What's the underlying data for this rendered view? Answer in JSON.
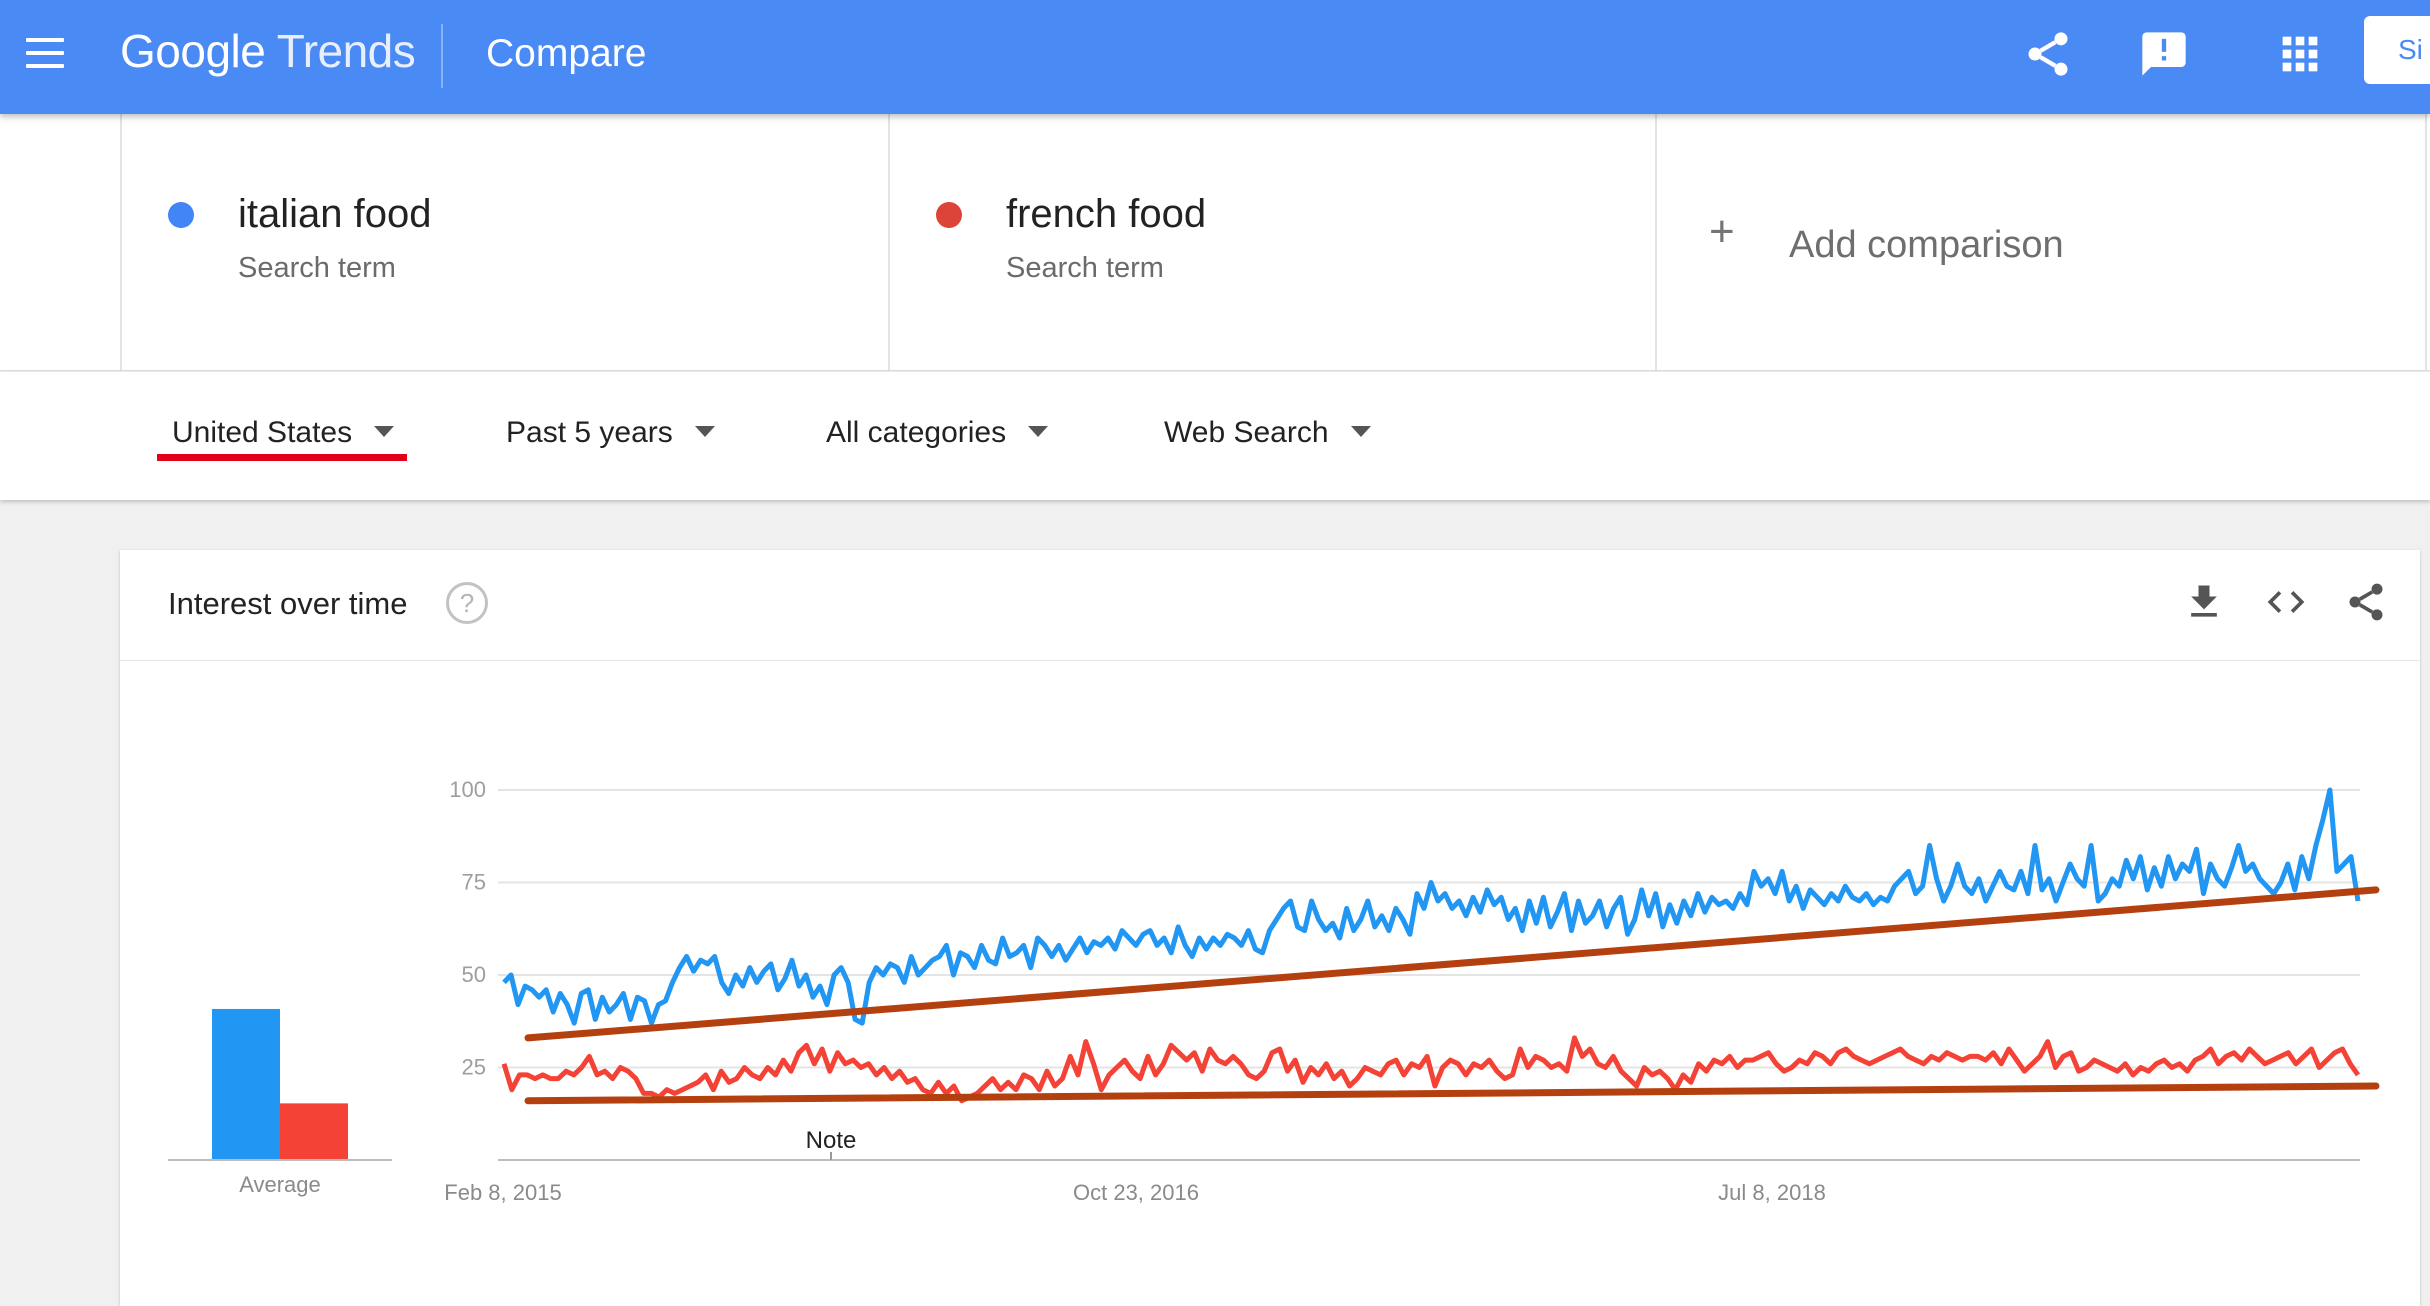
{
  "header": {
    "menu_icon": "menu-icon",
    "brand_google": "Google",
    "brand_trends": "Trends",
    "page_title": "Compare",
    "share_icon": "share-icon",
    "feedback_icon": "feedback-icon",
    "apps_icon": "apps-grid-icon",
    "signin_label": "Si",
    "accent_color": "#4a8af4"
  },
  "terms": [
    {
      "name": "italian food",
      "type": "Search term",
      "color": "#4285f4"
    },
    {
      "name": "french food",
      "type": "Search term",
      "color": "#db4437"
    }
  ],
  "add_comparison": {
    "label": "Add comparison",
    "icon": "plus-icon"
  },
  "filters": {
    "region": "United States",
    "time": "Past 5 years",
    "category": "All categories",
    "search_type": "Web Search"
  },
  "card": {
    "title": "Interest over time",
    "help_icon": "help-icon",
    "help_glyph": "?",
    "actions": [
      "download-icon",
      "embed-icon",
      "share-icon"
    ]
  },
  "chart_data": {
    "type": "line",
    "x_ticks": [
      "Feb 8, 2015",
      "Oct 23, 2016",
      "Jul 8, 2018"
    ],
    "y_ticks": [
      "25",
      "50",
      "75",
      "100"
    ],
    "ylim": [
      0,
      100
    ],
    "grid": true,
    "annotation": "Note",
    "average": {
      "label": "Average",
      "values": [
        64,
        24
      ],
      "colors": [
        "#2196f3",
        "#f44336"
      ]
    },
    "series": [
      {
        "color": "#2196f3",
        "values": [
          48,
          50,
          42,
          47,
          46,
          44,
          46,
          40,
          45,
          42,
          37,
          45,
          46,
          38,
          44,
          40,
          42,
          45,
          38,
          44,
          43,
          37,
          42,
          43,
          48,
          52,
          55,
          51,
          54,
          53,
          55,
          48,
          45,
          50,
          47,
          52,
          48,
          51,
          53,
          46,
          49,
          54,
          47,
          50,
          44,
          47,
          42,
          50,
          52,
          48,
          38,
          37,
          48,
          52,
          50,
          53,
          52,
          48,
          55,
          50,
          52,
          54,
          55,
          58,
          50,
          56,
          55,
          52,
          58,
          54,
          53,
          60,
          55,
          56,
          58,
          52,
          60,
          58,
          55,
          58,
          54,
          57,
          60,
          56,
          59,
          58,
          60,
          57,
          62,
          60,
          58,
          61,
          62,
          58,
          60,
          56,
          63,
          58,
          55,
          60,
          57,
          60,
          58,
          61,
          60,
          58,
          62,
          57,
          56,
          62,
          65,
          68,
          70,
          63,
          62,
          70,
          65,
          62,
          64,
          60,
          68,
          62,
          65,
          70,
          63,
          66,
          62,
          68,
          65,
          61,
          72,
          68,
          75,
          70,
          72,
          68,
          70,
          66,
          71,
          67,
          73,
          69,
          71,
          65,
          68,
          62,
          70,
          64,
          71,
          63,
          67,
          72,
          62,
          70,
          64,
          66,
          70,
          63,
          68,
          71,
          61,
          65,
          73,
          66,
          72,
          63,
          69,
          64,
          70,
          66,
          72,
          67,
          71,
          69,
          70,
          68,
          72,
          69,
          78,
          74,
          76,
          72,
          78,
          70,
          74,
          68,
          73,
          71,
          69,
          72,
          70,
          74,
          71,
          70,
          72,
          69,
          71,
          70,
          74,
          76,
          78,
          72,
          74,
          85,
          76,
          70,
          74,
          80,
          74,
          72,
          76,
          70,
          74,
          78,
          74,
          73,
          78,
          72,
          85,
          73,
          76,
          70,
          75,
          80,
          76,
          74,
          85,
          70,
          72,
          76,
          74,
          81,
          76,
          82,
          73,
          79,
          74,
          82,
          76,
          80,
          78,
          84,
          72,
          80,
          76,
          74,
          79,
          85,
          78,
          80,
          76,
          74,
          72,
          75,
          80,
          73,
          82,
          76,
          85,
          92,
          100,
          78,
          80,
          82,
          70
        ]
      },
      {
        "color": "#f44336",
        "values": [
          26,
          19,
          23,
          23,
          22,
          23,
          22,
          22,
          24,
          23,
          25,
          28,
          23,
          24,
          22,
          25,
          24,
          22,
          18,
          18,
          17,
          19,
          18,
          19,
          20,
          21,
          23,
          19,
          24,
          21,
          22,
          25,
          23,
          22,
          25,
          23,
          27,
          24,
          29,
          31,
          26,
          30,
          24,
          29,
          26,
          27,
          25,
          26,
          23,
          25,
          22,
          24,
          21,
          22,
          19,
          18,
          21,
          18,
          20,
          16,
          17,
          18,
          20,
          22,
          19,
          21,
          19,
          23,
          22,
          19,
          24,
          20,
          22,
          28,
          23,
          32,
          26,
          19,
          23,
          25,
          27,
          24,
          22,
          28,
          23,
          26,
          31,
          29,
          27,
          29,
          24,
          30,
          27,
          26,
          28,
          26,
          23,
          22,
          24,
          29,
          30,
          24,
          27,
          21,
          25,
          23,
          26,
          22,
          24,
          20,
          22,
          25,
          24,
          23,
          26,
          27,
          23,
          26,
          25,
          28,
          20,
          25,
          27,
          26,
          23,
          26,
          25,
          27,
          24,
          22,
          23,
          30,
          25,
          28,
          27,
          25,
          26,
          24,
          33,
          28,
          30,
          26,
          25,
          28,
          24,
          22,
          20,
          25,
          23,
          24,
          22,
          19,
          23,
          21,
          26,
          24,
          27,
          26,
          28,
          25,
          27,
          27,
          28,
          29,
          26,
          24,
          25,
          27,
          26,
          29,
          28,
          26,
          29,
          30,
          28,
          27,
          26,
          27,
          28,
          29,
          30,
          28,
          27,
          26,
          28,
          27,
          29,
          28,
          27,
          28,
          28,
          27,
          29,
          26,
          30,
          27,
          24,
          26,
          28,
          32,
          25,
          28,
          29,
          24,
          25,
          27,
          26,
          25,
          24,
          26,
          23,
          25,
          24,
          26,
          27,
          25,
          26,
          24,
          27,
          28,
          30,
          26,
          28,
          29,
          27,
          30,
          28,
          26,
          27,
          28,
          29,
          26,
          28,
          30,
          25,
          27,
          29,
          30,
          26,
          23
        ]
      }
    ],
    "trendlines": [
      {
        "color": "#b5400f",
        "from": 33,
        "to": 73
      },
      {
        "color": "#b5400f",
        "from": 16,
        "to": 20
      }
    ]
  }
}
